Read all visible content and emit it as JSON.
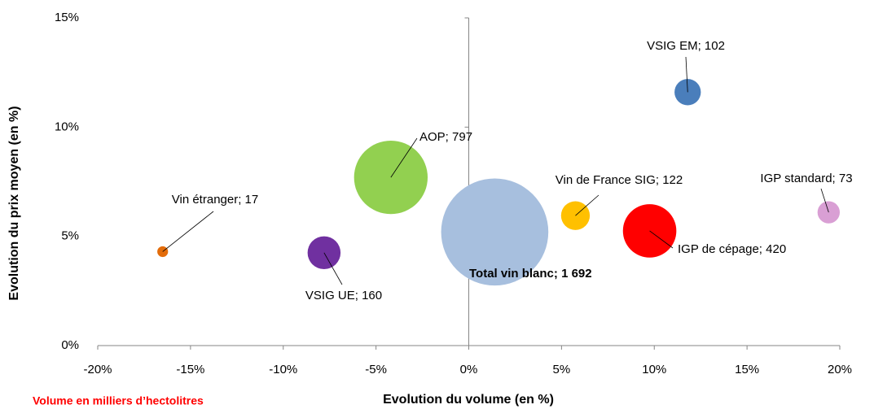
{
  "chart_data": {
    "type": "bubble",
    "xlabel": "Evolution du volume (en %)",
    "ylabel": "Evolution du prix moyen (en %)",
    "size_note": "Volume en milliers d’hectolitres",
    "xlim": [
      -20,
      20
    ],
    "xticks": [
      {
        "value": -20,
        "label": "-20%"
      },
      {
        "value": -15,
        "label": "-15%"
      },
      {
        "value": -10,
        "label": "-10%"
      },
      {
        "value": -5,
        "label": "-5%"
      },
      {
        "value": 0,
        "label": "0%"
      },
      {
        "value": 5,
        "label": "5%"
      },
      {
        "value": 10,
        "label": "10%"
      },
      {
        "value": 15,
        "label": "15%"
      },
      {
        "value": 20,
        "label": "20%"
      }
    ],
    "ylim": [
      0,
      15
    ],
    "yticks": [
      {
        "value": 0,
        "label": "0%"
      },
      {
        "value": 5,
        "label": "5%"
      },
      {
        "value": 10,
        "label": "10%"
      },
      {
        "value": 15,
        "label": "15%"
      }
    ],
    "series": [
      {
        "label": "VSIG EM;  102",
        "color": "#4a7ebb",
        "x": [
          11.8
        ],
        "values": [
          11.6
        ],
        "sizes": [
          102
        ]
      },
      {
        "label": "AOP;  797",
        "color": "#92d050",
        "x": [
          -4.2
        ],
        "values": [
          7.7
        ],
        "sizes": [
          797
        ]
      },
      {
        "label": "Vin de France SIG;  122",
        "color": "#ffc000",
        "x": [
          5.75
        ],
        "values": [
          5.95
        ],
        "sizes": [
          122
        ]
      },
      {
        "label": "IGP standard;  73",
        "color": "#d99fd4",
        "x": [
          19.4
        ],
        "values": [
          6.1
        ],
        "sizes": [
          73
        ]
      },
      {
        "label": "Vin étranger;  17",
        "color": "#e36c0a",
        "x": [
          -16.5
        ],
        "values": [
          4.3
        ],
        "sizes": [
          17
        ]
      },
      {
        "label": "VSIG UE;  160",
        "color": "#7030a0",
        "x": [
          -7.8
        ],
        "values": [
          4.25
        ],
        "sizes": [
          160
        ]
      },
      {
        "label": "Total vin blanc; 1 692",
        "color": "#a7bfde",
        "x": [
          1.4
        ],
        "values": [
          5.2
        ],
        "sizes": [
          1692
        ]
      },
      {
        "label": "IGP de cépage;  420",
        "color": "#ff0000",
        "x": [
          9.75
        ],
        "values": [
          5.25
        ],
        "sizes": [
          420
        ]
      }
    ]
  }
}
